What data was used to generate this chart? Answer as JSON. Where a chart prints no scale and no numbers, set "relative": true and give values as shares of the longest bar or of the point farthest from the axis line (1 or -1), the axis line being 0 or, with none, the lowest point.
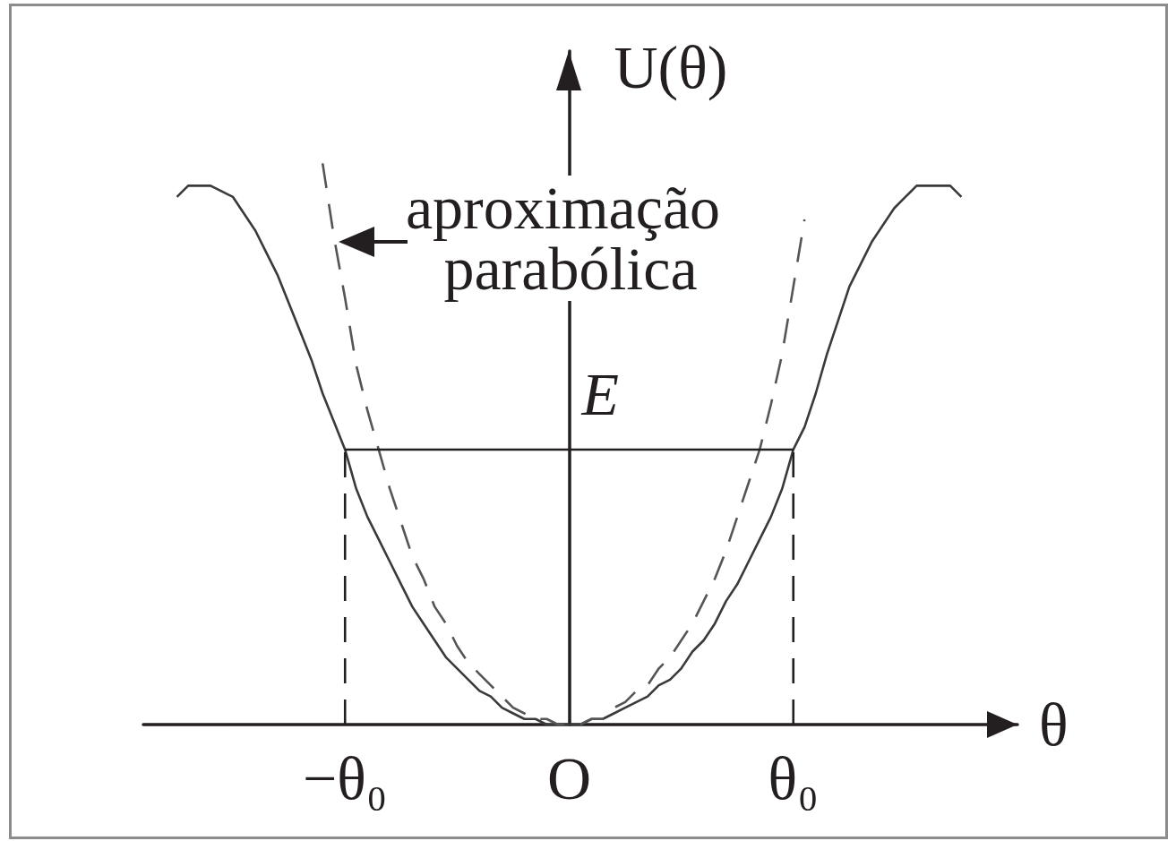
{
  "chart_data": {
    "type": "line",
    "relative": true,
    "grid": false,
    "marker": "none",
    "tick_labels": "x",
    "xlabel": "θ",
    "ylabel": "U(θ)",
    "categories": [
      null,
      null,
      null,
      null,
      null,
      null,
      null,
      null,
      null,
      null,
      null,
      null,
      null,
      null,
      null,
      null,
      null,
      null,
      "−θ₀",
      null,
      null,
      null,
      null,
      null,
      null,
      null,
      null,
      null,
      null,
      null,
      null,
      null,
      null,
      null,
      null,
      null,
      null,
      null,
      "O",
      null,
      null,
      null,
      null,
      null,
      null,
      null,
      null,
      null,
      null,
      null,
      null,
      null,
      null,
      null,
      null,
      null,
      null,
      null,
      "θ₀",
      null,
      null,
      null,
      null,
      null,
      null,
      null,
      null,
      null,
      null,
      null,
      null,
      null,
      null,
      null,
      null,
      null,
      null,
      null,
      null
    ],
    "series": [
      {
        "color": "#3a3a3a",
        "line_style": "solid",
        "values": [
          null,
          null,
          null,
          0.94,
          0.96,
          0.96,
          0.96,
          0.95,
          0.94,
          0.91,
          0.88,
          0.84,
          0.8,
          0.75,
          0.7,
          0.65,
          0.59,
          0.54,
          0.49,
          0.42,
          0.37,
          0.33,
          0.29,
          0.25,
          0.21,
          0.18,
          0.15,
          0.12,
          0.1,
          0.08,
          0.06,
          0.05,
          0.03,
          0.02,
          0.01,
          0.01,
          0,
          0,
          0,
          0,
          0.01,
          0.01,
          0.02,
          0.03,
          0.04,
          0.05,
          0.07,
          0.08,
          0.1,
          0.13,
          0.15,
          0.18,
          0.22,
          0.25,
          0.29,
          0.33,
          0.37,
          0.42,
          0.49,
          0.53,
          0.59,
          0.66,
          0.72,
          0.78,
          0.82,
          0.86,
          0.89,
          0.92,
          0.94,
          0.96,
          0.96,
          0.96,
          0.96,
          0.94,
          null,
          null,
          null,
          null,
          null
        ]
      },
      {
        "color": "#555555",
        "line_style": "dashed",
        "values": [
          null,
          null,
          null,
          null,
          null,
          null,
          null,
          null,
          null,
          null,
          null,
          null,
          null,
          null,
          null,
          null,
          1.0,
          0.87,
          0.76,
          0.64,
          0.56,
          0.49,
          0.42,
          0.36,
          0.3,
          0.26,
          0.21,
          0.18,
          0.14,
          0.11,
          0.09,
          0.07,
          0.05,
          0.03,
          0.02,
          0.01,
          0.01,
          0,
          0,
          0,
          0.01,
          0.01,
          0.03,
          0.04,
          0.06,
          0.07,
          0.1,
          0.12,
          0.15,
          0.18,
          0.22,
          0.26,
          0.31,
          0.37,
          0.43,
          0.49,
          0.57,
          0.66,
          0.78,
          0.9,
          null,
          null,
          null,
          null,
          null,
          null,
          null,
          null,
          null,
          null,
          null,
          null,
          null,
          null,
          null,
          null,
          null,
          null,
          null
        ]
      },
      {
        "name": "E",
        "color": "#231f20",
        "line_style": "solid",
        "x": [
          "−θ₀",
          "θ₀"
        ],
        "values": [
          0.49,
          0.49
        ]
      },
      {
        "color": "#231f20",
        "line_style": "dashed",
        "x": [
          "−θ₀",
          "−θ₀"
        ],
        "values": [
          0,
          0.49
        ]
      },
      {
        "color": "#231f20",
        "line_style": "dashed",
        "x": [
          "θ₀",
          "θ₀"
        ],
        "values": [
          0,
          0.49
        ]
      }
    ],
    "annotations": [
      "aproximação parabólica"
    ]
  }
}
